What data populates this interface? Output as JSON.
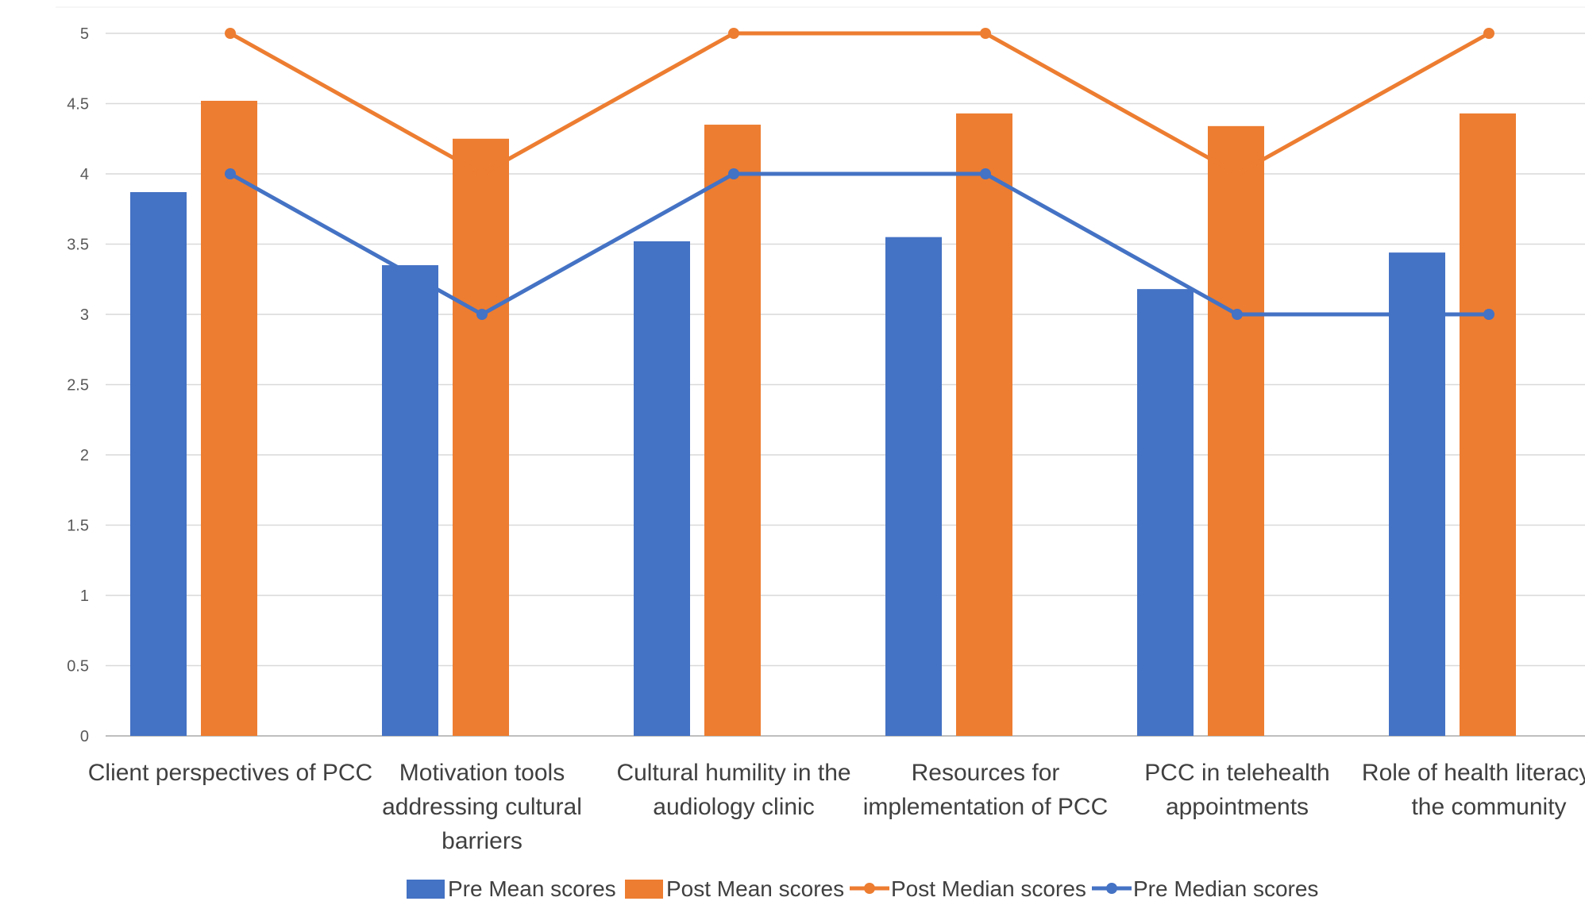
{
  "chart_data": {
    "type": "bar",
    "categories": [
      [
        "Client perspectives of PCC"
      ],
      [
        "Motivation tools",
        "addressing cultural",
        "barriers"
      ],
      [
        "Cultural humility in the",
        "audiology clinic"
      ],
      [
        "Resources for",
        "implementation of PCC"
      ],
      [
        "PCC in telehealth",
        "appointments"
      ],
      [
        "Role of health literacy in",
        "the community"
      ]
    ],
    "ylim": [
      0,
      5
    ],
    "yticks": [
      "0",
      "0.5",
      "1",
      "1.5",
      "2",
      "2.5",
      "3",
      "3.5",
      "4",
      "4.5",
      "5"
    ],
    "grid": true,
    "legend_position": "bottom",
    "bar_series": [
      {
        "name": "Pre Mean scores",
        "color": "#4472C4",
        "values": [
          3.87,
          3.35,
          3.52,
          3.55,
          3.18,
          3.44
        ]
      },
      {
        "name": "Post Mean scores",
        "color": "#ED7D31",
        "values": [
          4.52,
          4.25,
          4.35,
          4.43,
          4.34,
          4.43
        ]
      }
    ],
    "line_series": [
      {
        "name": "Post Median scores",
        "color": "#ED7D31",
        "values": [
          5,
          4,
          5,
          5,
          4,
          5
        ]
      },
      {
        "name": "Pre Median scores",
        "color": "#4472C4",
        "values": [
          4,
          3,
          4,
          4,
          3,
          3
        ]
      }
    ]
  }
}
